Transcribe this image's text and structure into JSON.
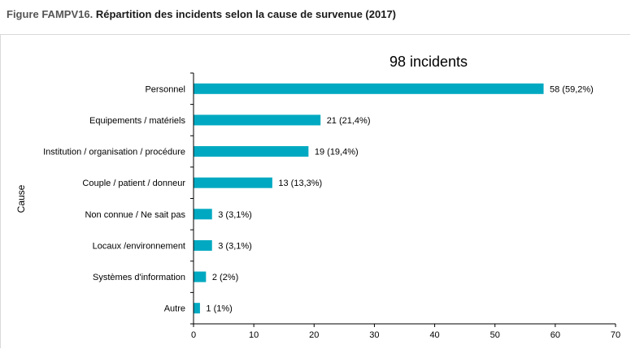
{
  "figure": {
    "prefix": "Figure FAMPV16.",
    "title": "Répartition des incidents selon la cause de survenue (2017)"
  },
  "chart_data": {
    "type": "bar",
    "orientation": "horizontal",
    "subtitle": "98 incidents",
    "ylabel": "Cause",
    "xlabel": "",
    "categories": [
      "Personnel",
      "Equipements / matériels",
      "Institution / organisation / procédure",
      "Couple / patient / donneur",
      "Non connue / Ne sait pas",
      "Locaux /environnement",
      "Systèmes d'information",
      "Autre"
    ],
    "values": [
      58,
      21,
      19,
      13,
      3,
      3,
      2,
      1
    ],
    "data_labels": [
      "58 (59,2%)",
      "21 (21,4%)",
      "19 (19,4%)",
      "13 (13,3%)",
      "3 (3,1%)",
      "3 (3,1%)",
      "2 (2%)",
      "1 (1%)"
    ],
    "xlim": [
      0,
      70
    ],
    "xticks": [
      0,
      10,
      20,
      30,
      40,
      50,
      60,
      70
    ],
    "bar_color": "#00A9C1",
    "grid": false,
    "legend": "none"
  }
}
